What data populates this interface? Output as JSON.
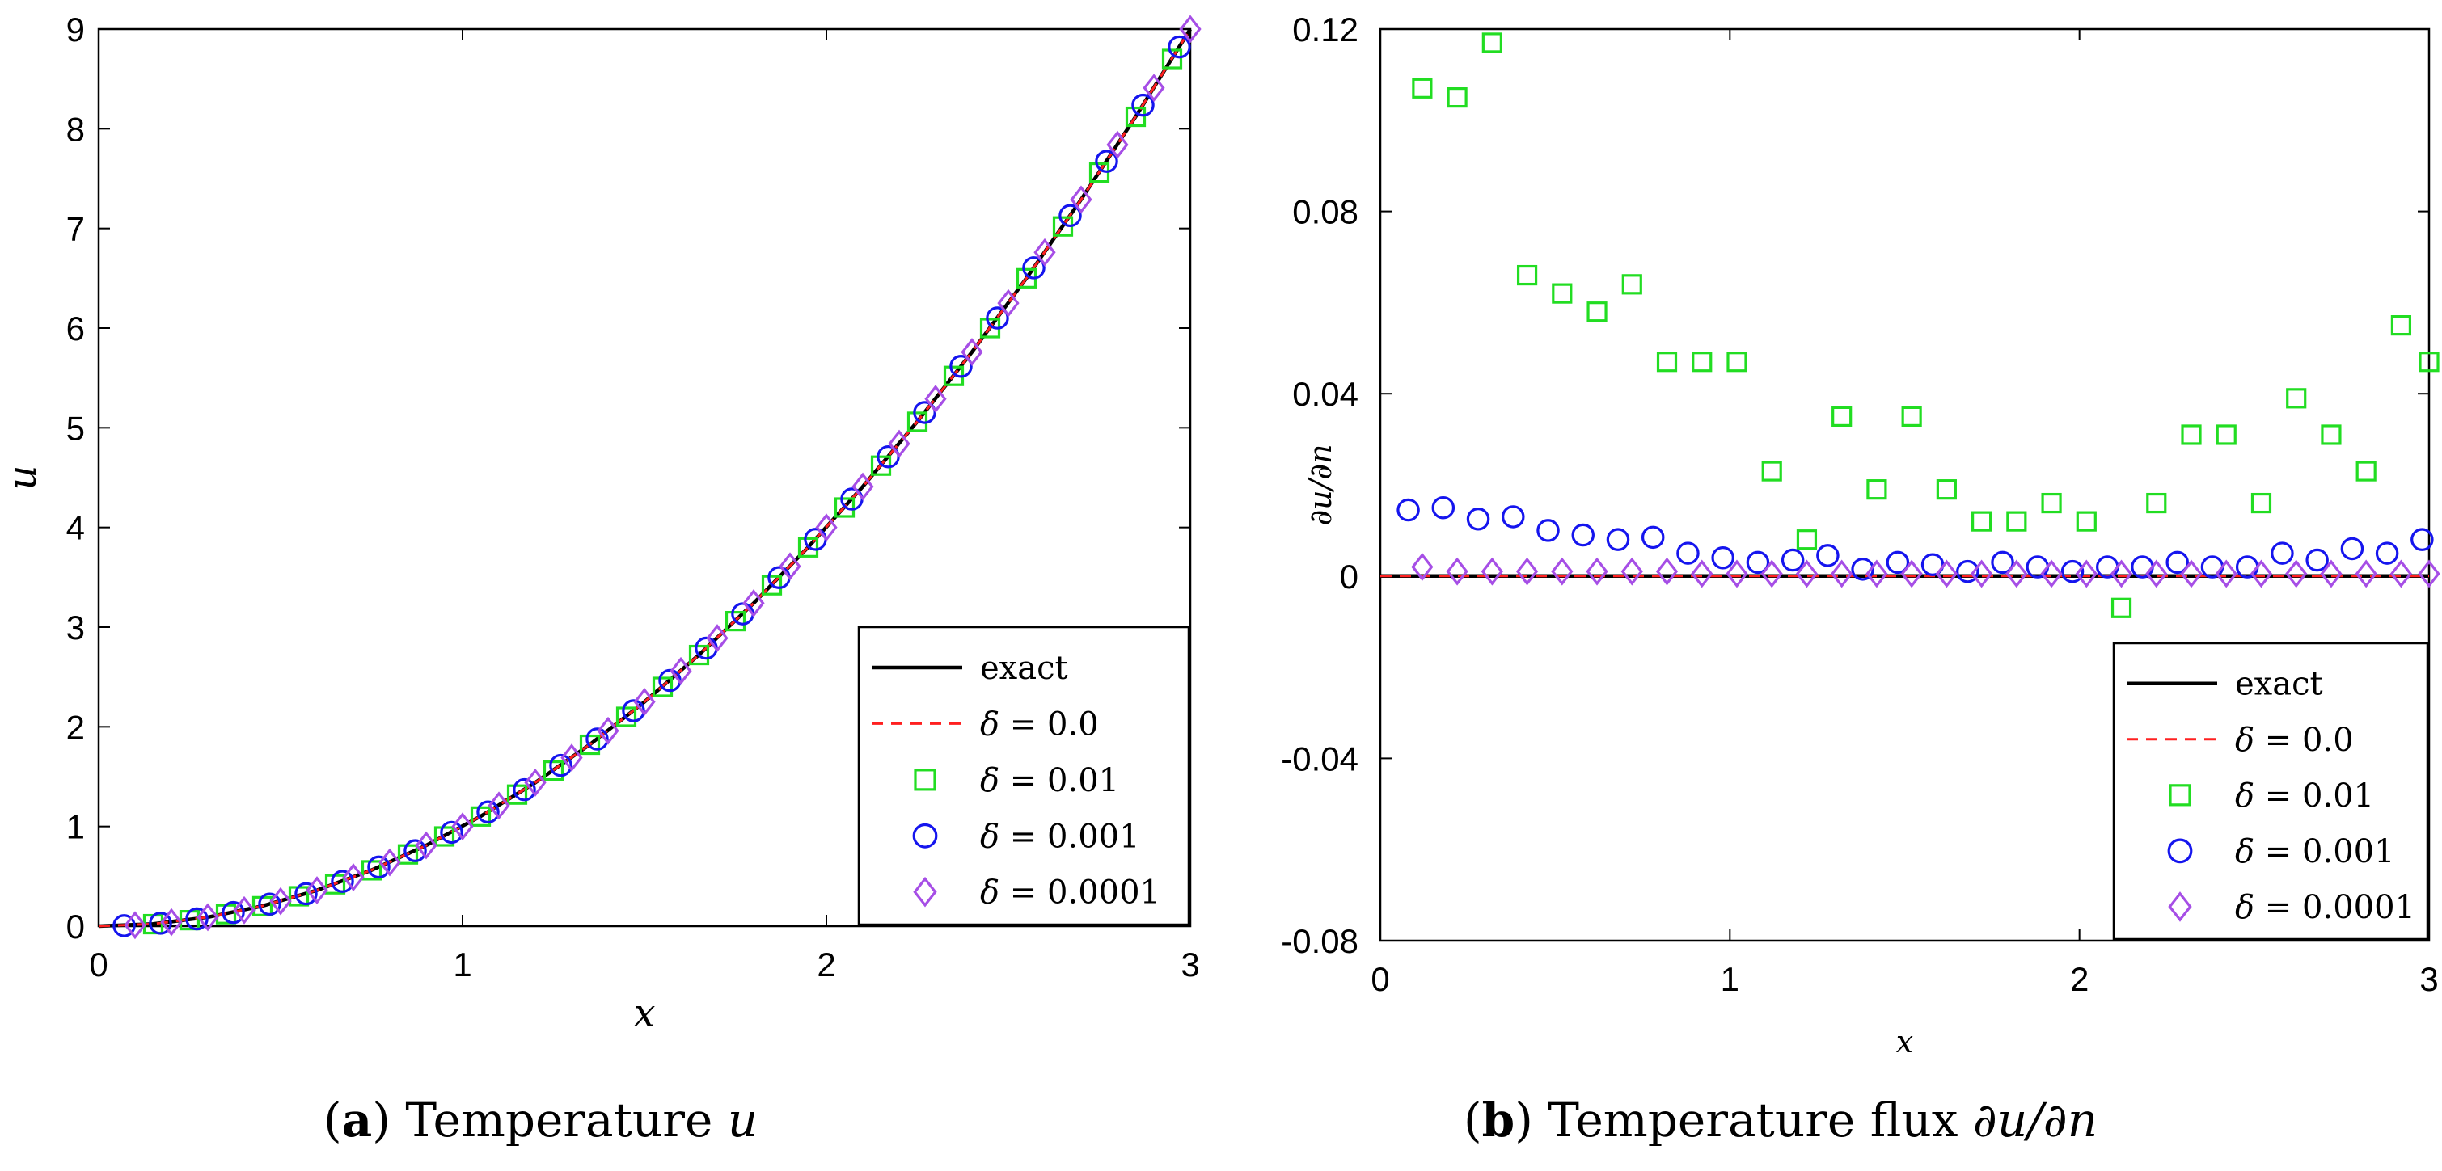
{
  "chart_data": [
    {
      "type": "scatter",
      "panel": "a",
      "caption": {
        "label": "a",
        "text": "Temperature",
        "symbol": "u"
      },
      "xlabel": "x",
      "ylabel": "u",
      "xlim": [
        0,
        3
      ],
      "ylim": [
        0,
        9
      ],
      "xticks": [
        0,
        1,
        2,
        3
      ],
      "yticks": [
        0,
        1,
        2,
        3,
        4,
        5,
        6,
        7,
        8,
        9
      ],
      "ytick_labels": [
        "0",
        "1",
        "2",
        "3",
        "4",
        "5",
        "6",
        "7",
        "8",
        "9"
      ],
      "legend_position": "bottom-right",
      "legend": [
        "exact",
        "δ = 0.0",
        "δ = 0.01",
        "δ = 0.001",
        "δ = 0.0001"
      ],
      "exact_curve": {
        "x": [
          0,
          0.15,
          0.3,
          0.45,
          0.6,
          0.75,
          0.9,
          1.05,
          1.2,
          1.35,
          1.5,
          1.65,
          1.8,
          1.95,
          2.1,
          2.25,
          2.4,
          2.55,
          2.7,
          2.85,
          3.0
        ],
        "y": [
          0,
          0.0225,
          0.09,
          0.2025,
          0.36,
          0.5625,
          0.81,
          1.1025,
          1.44,
          1.8225,
          2.25,
          2.7225,
          3.24,
          3.8025,
          4.41,
          5.0625,
          5.76,
          6.5025,
          7.29,
          8.1225,
          9.0
        ]
      },
      "series": [
        {
          "name": "exact",
          "style": "solid-line",
          "color": "#000000"
        },
        {
          "name": "δ = 0.0",
          "style": "dashed-line",
          "color": "#ff2020"
        },
        {
          "name": "δ = 0.01",
          "marker": "square",
          "color": "#22dd22",
          "x": [
            0.15,
            0.25,
            0.35,
            0.45,
            0.55,
            0.65,
            0.75,
            0.85,
            0.95,
            1.05,
            1.15,
            1.25,
            1.35,
            1.45,
            1.55,
            1.65,
            1.75,
            1.85,
            1.95,
            2.05,
            2.15,
            2.25,
            2.35,
            2.45,
            2.55,
            2.65,
            2.75,
            2.85,
            2.95
          ],
          "y": [
            0.02,
            0.06,
            0.12,
            0.2,
            0.3,
            0.42,
            0.56,
            0.72,
            0.9,
            1.1,
            1.32,
            1.56,
            1.82,
            2.1,
            2.4,
            2.72,
            3.06,
            3.42,
            3.8,
            4.2,
            4.62,
            5.06,
            5.52,
            6.0,
            6.5,
            7.02,
            7.56,
            8.12,
            8.7
          ]
        },
        {
          "name": "δ = 0.001",
          "marker": "circle",
          "color": "#1515ee",
          "x": [
            0.07,
            0.17,
            0.27,
            0.37,
            0.47,
            0.57,
            0.67,
            0.77,
            0.87,
            0.97,
            1.07,
            1.17,
            1.27,
            1.37,
            1.47,
            1.57,
            1.67,
            1.77,
            1.87,
            1.97,
            2.07,
            2.17,
            2.27,
            2.37,
            2.47,
            2.57,
            2.67,
            2.77,
            2.87,
            2.97
          ],
          "y": [
            0.0049,
            0.0289,
            0.0729,
            0.1369,
            0.2209,
            0.3249,
            0.4489,
            0.5929,
            0.7569,
            0.9409,
            1.1449,
            1.3689,
            1.6129,
            1.8769,
            2.1609,
            2.4649,
            2.7889,
            3.1329,
            3.4969,
            3.8809,
            4.2849,
            4.7089,
            5.1529,
            5.6169,
            6.1009,
            6.6049,
            7.1289,
            7.6729,
            8.2369,
            8.8209
          ]
        },
        {
          "name": "δ = 0.0001",
          "marker": "diamond",
          "color": "#a64ee6",
          "x": [
            0.1,
            0.2,
            0.3,
            0.4,
            0.5,
            0.6,
            0.7,
            0.8,
            0.9,
            1.0,
            1.1,
            1.2,
            1.3,
            1.4,
            1.5,
            1.6,
            1.7,
            1.8,
            1.9,
            2.0,
            2.1,
            2.2,
            2.3,
            2.4,
            2.5,
            2.6,
            2.7,
            2.8,
            2.9,
            3.0
          ],
          "y": [
            0.01,
            0.04,
            0.09,
            0.16,
            0.25,
            0.36,
            0.49,
            0.64,
            0.81,
            1.0,
            1.21,
            1.44,
            1.69,
            1.96,
            2.25,
            2.56,
            2.89,
            3.24,
            3.61,
            4.0,
            4.41,
            4.84,
            5.29,
            5.76,
            6.25,
            6.76,
            7.29,
            7.84,
            8.41,
            9.0
          ]
        }
      ]
    },
    {
      "type": "scatter",
      "panel": "b",
      "caption": {
        "label": "b",
        "text": "Temperature flux",
        "symbol": "∂u/∂n"
      },
      "xlabel": "x",
      "ylabel": "∂u/∂n",
      "xlim": [
        0,
        3
      ],
      "ylim": [
        -0.08,
        0.12
      ],
      "xticks": [
        0,
        1,
        2,
        3
      ],
      "yticks": [
        -0.08,
        -0.04,
        0,
        0.04,
        0.08,
        0.12
      ],
      "ytick_labels": [
        "-0.08",
        "-0.04",
        "0",
        "0.04",
        "0.08",
        "0.12"
      ],
      "legend_position": "bottom-right",
      "legend": [
        "exact",
        "δ = 0.0",
        "δ = 0.01",
        "δ = 0.001",
        "δ = 0.0001"
      ],
      "exact_curve": {
        "x": [
          0,
          3
        ],
        "y": [
          0,
          0
        ]
      },
      "series": [
        {
          "name": "exact",
          "style": "solid-line",
          "color": "#000000"
        },
        {
          "name": "δ = 0.0",
          "style": "dashed-line",
          "color": "#ff2020"
        },
        {
          "name": "δ = 0.01",
          "marker": "square",
          "color": "#22dd22",
          "x": [
            0.12,
            0.22,
            0.32,
            0.42,
            0.52,
            0.62,
            0.72,
            0.82,
            0.92,
            1.02,
            1.12,
            1.22,
            1.32,
            1.42,
            1.52,
            1.62,
            1.72,
            1.82,
            1.92,
            2.02,
            2.12,
            2.22,
            2.32,
            2.42,
            2.52,
            2.62,
            2.72,
            2.82,
            2.92,
            3.0
          ],
          "y": [
            0.107,
            0.105,
            0.117,
            0.066,
            0.062,
            0.058,
            0.064,
            0.047,
            0.047,
            0.047,
            0.023,
            0.008,
            0.035,
            0.019,
            0.035,
            0.019,
            0.012,
            0.012,
            0.016,
            0.012,
            -0.007,
            0.016,
            0.031,
            0.031,
            0.016,
            0.039,
            0.031,
            0.023,
            0.055,
            0.047
          ]
        },
        {
          "name": "δ = 0.001",
          "marker": "circle",
          "color": "#1515ee",
          "x": [
            0.08,
            0.18,
            0.28,
            0.38,
            0.48,
            0.58,
            0.68,
            0.78,
            0.88,
            0.98,
            1.08,
            1.18,
            1.28,
            1.38,
            1.48,
            1.58,
            1.68,
            1.78,
            1.88,
            1.98,
            2.08,
            2.18,
            2.28,
            2.38,
            2.48,
            2.58,
            2.68,
            2.78,
            2.88,
            2.98
          ],
          "y": [
            0.0145,
            0.015,
            0.0125,
            0.013,
            0.01,
            0.009,
            0.008,
            0.0085,
            0.005,
            0.004,
            0.003,
            0.0035,
            0.0045,
            0.0015,
            0.003,
            0.0025,
            0.001,
            0.003,
            0.002,
            0.001,
            0.002,
            0.002,
            0.003,
            0.002,
            0.002,
            0.005,
            0.0035,
            0.006,
            0.005,
            0.008
          ]
        },
        {
          "name": "δ = 0.0001",
          "marker": "diamond",
          "color": "#a64ee6",
          "x": [
            0.12,
            0.22,
            0.32,
            0.42,
            0.52,
            0.62,
            0.72,
            0.82,
            0.92,
            1.02,
            1.12,
            1.22,
            1.32,
            1.42,
            1.52,
            1.62,
            1.72,
            1.82,
            1.92,
            2.02,
            2.12,
            2.22,
            2.32,
            2.42,
            2.52,
            2.62,
            2.72,
            2.82,
            2.92,
            3.0
          ],
          "y": [
            0.002,
            0.001,
            0.001,
            0.001,
            0.001,
            0.001,
            0.001,
            0.001,
            0.0005,
            0.0005,
            0.0005,
            0.0005,
            0.0005,
            0.0005,
            0.0005,
            0.0005,
            0.0005,
            0.0005,
            0.0005,
            0.0005,
            0.0005,
            0.0005,
            0.0005,
            0.0005,
            0.0005,
            0.0005,
            0.0005,
            0.0005,
            0.0005,
            0.0005
          ]
        }
      ]
    }
  ]
}
